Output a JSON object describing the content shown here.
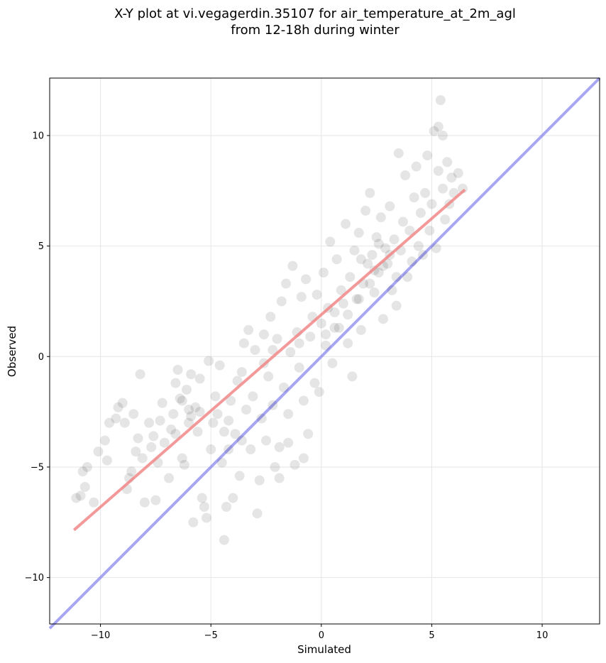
{
  "chart_data": {
    "type": "scatter",
    "title_line1": "X-Y plot at vi.vegagerdin.35107 for air_temperature_at_2m_agl",
    "title_line2": "from 12-18h during winter",
    "xlabel": "Simulated",
    "ylabel": "Observed",
    "xlim": [
      -12.3,
      12.6
    ],
    "ylim": [
      -12.1,
      12.6
    ],
    "xticks": [
      -10,
      -5,
      0,
      5,
      10
    ],
    "xtick_labels": [
      "−10",
      "−5",
      "0",
      "5",
      "10"
    ],
    "yticks": [
      -10,
      -5,
      0,
      5,
      10
    ],
    "ytick_labels": [
      "−10",
      "−5",
      "0",
      "5",
      "10"
    ],
    "grid": true,
    "colors": {
      "points": "#000000",
      "fit_line": "#f08080",
      "identity_line": "#8080f0",
      "grid": "#e6e6e6"
    },
    "series": [
      {
        "role": "points",
        "points": [
          [
            -11.1,
            -6.4
          ],
          [
            -10.9,
            -6.3
          ],
          [
            -10.7,
            -5.9
          ],
          [
            -10.8,
            -5.2
          ],
          [
            -10.6,
            -5.0
          ],
          [
            -10.3,
            -6.6
          ],
          [
            -10.1,
            -4.3
          ],
          [
            -9.8,
            -3.8
          ],
          [
            -9.7,
            -4.7
          ],
          [
            -9.6,
            -3.0
          ],
          [
            -9.3,
            -2.8
          ],
          [
            -9.2,
            -2.3
          ],
          [
            -9.0,
            -2.1
          ],
          [
            -8.9,
            -3.0
          ],
          [
            -8.7,
            -5.5
          ],
          [
            -8.8,
            -6.0
          ],
          [
            -8.6,
            -5.2
          ],
          [
            -8.5,
            -2.6
          ],
          [
            -8.4,
            -4.3
          ],
          [
            -8.3,
            -3.7
          ],
          [
            -8.2,
            -0.8
          ],
          [
            -8.1,
            -4.6
          ],
          [
            -8.0,
            -6.6
          ],
          [
            -7.8,
            -3.0
          ],
          [
            -7.7,
            -4.1
          ],
          [
            -7.6,
            -3.6
          ],
          [
            -7.5,
            -6.5
          ],
          [
            -7.4,
            -4.8
          ],
          [
            -7.3,
            -2.9
          ],
          [
            -7.2,
            -2.1
          ],
          [
            -7.1,
            -3.9
          ],
          [
            -6.9,
            -5.5
          ],
          [
            -6.8,
            -3.3
          ],
          [
            -6.7,
            -2.6
          ],
          [
            -6.6,
            -1.2
          ],
          [
            -6.5,
            -0.6
          ],
          [
            -6.4,
            -1.9
          ],
          [
            -6.3,
            -4.6
          ],
          [
            -6.2,
            -4.9
          ],
          [
            -6.1,
            -1.5
          ],
          [
            -6.0,
            -2.4
          ],
          [
            -5.9,
            -0.8
          ],
          [
            -5.8,
            -7.5
          ],
          [
            -5.7,
            -2.3
          ],
          [
            -5.6,
            -3.4
          ],
          [
            -5.5,
            -1.0
          ],
          [
            -5.4,
            -6.4
          ],
          [
            -5.3,
            -6.8
          ],
          [
            -5.2,
            -7.3
          ],
          [
            -5.1,
            -0.2
          ],
          [
            -5.0,
            -4.2
          ],
          [
            -4.9,
            -3.0
          ],
          [
            -4.8,
            -1.8
          ],
          [
            -4.7,
            -2.6
          ],
          [
            -4.6,
            -0.4
          ],
          [
            -4.5,
            -4.8
          ],
          [
            -4.4,
            -8.3
          ],
          [
            -4.3,
            -6.8
          ],
          [
            -4.2,
            -4.2
          ],
          [
            -4.1,
            -2.0
          ],
          [
            -4.0,
            -6.4
          ],
          [
            -3.9,
            -3.5
          ],
          [
            -3.8,
            -1.1
          ],
          [
            -3.7,
            -5.4
          ],
          [
            -3.6,
            -0.7
          ],
          [
            -3.5,
            0.6
          ],
          [
            -3.4,
            -2.4
          ],
          [
            -3.3,
            1.2
          ],
          [
            -3.2,
            -4.2
          ],
          [
            -3.1,
            -1.8
          ],
          [
            -3.0,
            0.3
          ],
          [
            -2.9,
            -7.1
          ],
          [
            -2.8,
            -5.6
          ],
          [
            -2.7,
            -2.8
          ],
          [
            -2.6,
            1.0
          ],
          [
            -2.5,
            -3.8
          ],
          [
            -2.4,
            -0.9
          ],
          [
            -2.3,
            1.8
          ],
          [
            -2.2,
            -2.2
          ],
          [
            -2.1,
            -5.0
          ],
          [
            -2.0,
            0.8
          ],
          [
            -1.9,
            -4.1
          ],
          [
            -1.8,
            2.5
          ],
          [
            -1.7,
            -1.4
          ],
          [
            -1.6,
            3.3
          ],
          [
            -1.5,
            -2.6
          ],
          [
            -1.4,
            0.2
          ],
          [
            -1.3,
            4.1
          ],
          [
            -1.2,
            -4.9
          ],
          [
            -1.1,
            1.1
          ],
          [
            -1.0,
            -0.5
          ],
          [
            -0.9,
            2.7
          ],
          [
            -0.8,
            -2.0
          ],
          [
            -0.7,
            3.5
          ],
          [
            -0.6,
            -3.5
          ],
          [
            -0.5,
            0.9
          ],
          [
            -0.4,
            1.8
          ],
          [
            -0.3,
            -1.2
          ],
          [
            -0.2,
            2.8
          ],
          [
            -0.1,
            -1.6
          ],
          [
            0.0,
            1.5
          ],
          [
            0.1,
            3.8
          ],
          [
            0.2,
            1.0
          ],
          [
            0.3,
            2.2
          ],
          [
            0.4,
            5.2
          ],
          [
            0.5,
            -0.3
          ],
          [
            0.6,
            2.0
          ],
          [
            0.7,
            4.4
          ],
          [
            0.8,
            1.3
          ],
          [
            0.9,
            3.0
          ],
          [
            1.0,
            2.4
          ],
          [
            1.1,
            6.0
          ],
          [
            1.2,
            0.6
          ],
          [
            1.3,
            3.6
          ],
          [
            1.4,
            -0.9
          ],
          [
            1.5,
            4.8
          ],
          [
            1.6,
            2.6
          ],
          [
            1.7,
            5.6
          ],
          [
            1.8,
            1.2
          ],
          [
            1.9,
            3.3
          ],
          [
            2.0,
            6.6
          ],
          [
            2.1,
            4.2
          ],
          [
            2.2,
            7.4
          ],
          [
            2.3,
            4.6
          ],
          [
            2.4,
            2.9
          ],
          [
            2.5,
            5.4
          ],
          [
            2.6,
            3.8
          ],
          [
            2.7,
            6.3
          ],
          [
            2.8,
            1.7
          ],
          [
            2.9,
            4.9
          ],
          [
            3.0,
            4.2
          ],
          [
            3.1,
            6.8
          ],
          [
            3.2,
            3.0
          ],
          [
            3.3,
            5.3
          ],
          [
            3.4,
            2.3
          ],
          [
            3.5,
            9.2
          ],
          [
            3.6,
            4.8
          ],
          [
            3.7,
            6.1
          ],
          [
            3.8,
            8.2
          ],
          [
            3.9,
            3.6
          ],
          [
            4.0,
            5.7
          ],
          [
            4.1,
            4.3
          ],
          [
            4.2,
            7.2
          ],
          [
            4.3,
            8.6
          ],
          [
            4.4,
            5.0
          ],
          [
            4.5,
            6.5
          ],
          [
            4.6,
            4.6
          ],
          [
            4.7,
            7.4
          ],
          [
            4.8,
            9.1
          ],
          [
            4.9,
            5.7
          ],
          [
            5.0,
            6.9
          ],
          [
            5.1,
            10.2
          ],
          [
            5.2,
            4.9
          ],
          [
            5.3,
            8.4
          ],
          [
            5.4,
            11.6
          ],
          [
            5.5,
            7.6
          ],
          [
            5.6,
            6.2
          ],
          [
            5.7,
            8.8
          ],
          [
            5.8,
            6.9
          ],
          [
            5.9,
            8.1
          ],
          [
            6.0,
            7.4
          ],
          [
            6.2,
            8.3
          ],
          [
            6.4,
            7.6
          ],
          [
            5.3,
            10.4
          ],
          [
            5.5,
            10.0
          ],
          [
            -3.6,
            -3.8
          ],
          [
            -4.4,
            -3.4
          ],
          [
            -1.5,
            -3.9
          ],
          [
            -0.8,
            -4.6
          ],
          [
            -1.9,
            -5.5
          ],
          [
            -6.6,
            -3.5
          ],
          [
            -6.0,
            -3.0
          ],
          [
            -5.9,
            -2.7
          ],
          [
            -6.3,
            -2.0
          ],
          [
            -5.5,
            -2.5
          ],
          [
            -4.2,
            -2.9
          ],
          [
            -2.2,
            0.3
          ],
          [
            -2.6,
            -0.3
          ],
          [
            -1.0,
            0.6
          ],
          [
            0.2,
            0.5
          ],
          [
            0.6,
            1.3
          ],
          [
            1.2,
            1.9
          ],
          [
            1.7,
            2.6
          ],
          [
            2.2,
            3.3
          ],
          [
            2.4,
            3.9
          ],
          [
            2.8,
            4.1
          ],
          [
            3.1,
            4.6
          ],
          [
            1.8,
            4.4
          ],
          [
            2.6,
            5.1
          ],
          [
            3.4,
            3.6
          ]
        ]
      },
      {
        "role": "fit_line",
        "points": [
          [
            -11.2,
            -7.85
          ],
          [
            6.5,
            7.55
          ]
        ]
      },
      {
        "role": "identity_line",
        "points": [
          [
            -12.3,
            -12.3
          ],
          [
            12.6,
            12.6
          ]
        ]
      }
    ]
  }
}
